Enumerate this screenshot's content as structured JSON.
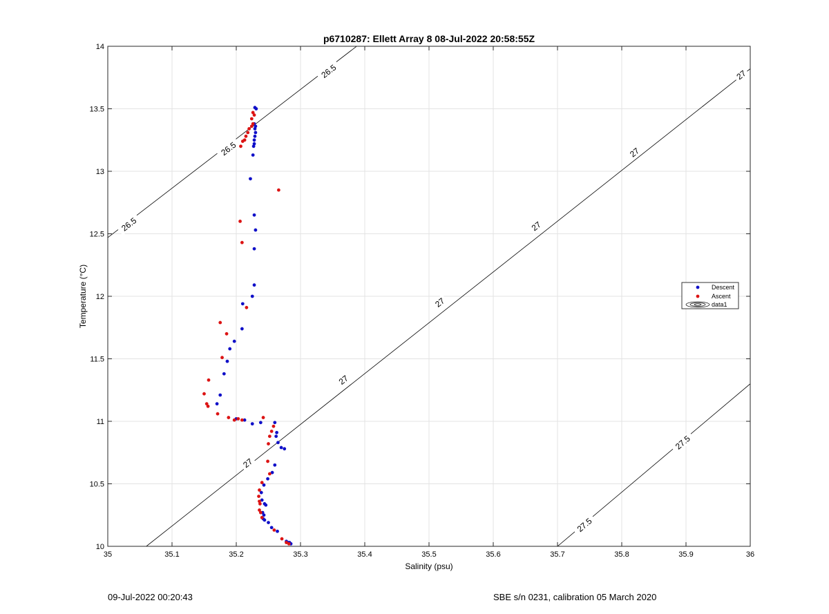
{
  "chart_data": {
    "type": "scatter",
    "title": "p6710287: Ellett Array 8 08-Jul-2022 20:58:55Z",
    "xlabel": "Salinity (psu)",
    "ylabel": "Temperature (°C)",
    "xlim": [
      35,
      36
    ],
    "ylim": [
      10,
      14
    ],
    "xticks": [
      "35",
      "35.1",
      "35.2",
      "35.3",
      "35.4",
      "35.5",
      "35.6",
      "35.7",
      "35.8",
      "35.9",
      "36"
    ],
    "yticks": [
      "10",
      "10.5",
      "11",
      "11.5",
      "12",
      "12.5",
      "13",
      "13.5",
      "14"
    ],
    "grid": true,
    "legend_position": "right",
    "legend": [
      "Descent",
      "Ascent",
      "data1"
    ],
    "colors": {
      "descent": "#1010c8",
      "ascent": "#dc1414",
      "contour": "#000000",
      "grid": "#e3e3e3"
    },
    "series": [
      {
        "name": "Descent",
        "points": [
          [
            35.229,
            13.51
          ],
          [
            35.231,
            13.5
          ],
          [
            35.228,
            13.38
          ],
          [
            35.23,
            13.36
          ],
          [
            35.229,
            13.34
          ],
          [
            35.23,
            13.31
          ],
          [
            35.229,
            13.28
          ],
          [
            35.228,
            13.25
          ],
          [
            35.228,
            13.22
          ],
          [
            35.227,
            13.2
          ],
          [
            35.226,
            13.13
          ],
          [
            35.222,
            12.94
          ],
          [
            35.228,
            12.65
          ],
          [
            35.23,
            12.53
          ],
          [
            35.228,
            12.38
          ],
          [
            35.228,
            12.09
          ],
          [
            35.225,
            12.0
          ],
          [
            35.21,
            11.94
          ],
          [
            35.209,
            11.74
          ],
          [
            35.197,
            11.64
          ],
          [
            35.19,
            11.58
          ],
          [
            35.186,
            11.48
          ],
          [
            35.181,
            11.38
          ],
          [
            35.175,
            11.21
          ],
          [
            35.17,
            11.14
          ],
          [
            35.2,
            11.02
          ],
          [
            35.213,
            11.01
          ],
          [
            35.225,
            10.98
          ],
          [
            35.238,
            10.99
          ],
          [
            35.26,
            10.99
          ],
          [
            35.263,
            10.91
          ],
          [
            35.262,
            10.88
          ],
          [
            35.265,
            10.83
          ],
          [
            35.27,
            10.79
          ],
          [
            35.275,
            10.78
          ],
          [
            35.26,
            10.65
          ],
          [
            35.256,
            10.59
          ],
          [
            35.249,
            10.54
          ],
          [
            35.243,
            10.49
          ],
          [
            35.239,
            10.43
          ],
          [
            35.24,
            10.37
          ],
          [
            35.244,
            10.34
          ],
          [
            35.246,
            10.33
          ],
          [
            35.241,
            10.27
          ],
          [
            35.243,
            10.25
          ],
          [
            35.242,
            10.22
          ],
          [
            35.244,
            10.21
          ],
          [
            35.25,
            10.19
          ],
          [
            35.255,
            10.15
          ],
          [
            35.264,
            10.12
          ],
          [
            35.278,
            10.04
          ],
          [
            35.281,
            10.03
          ],
          [
            35.283,
            10.03
          ],
          [
            35.285,
            10.02
          ]
        ]
      },
      {
        "name": "Ascent",
        "points": [
          [
            35.226,
            13.47
          ],
          [
            35.228,
            13.45
          ],
          [
            35.224,
            13.42
          ],
          [
            35.226,
            13.38
          ],
          [
            35.224,
            13.36
          ],
          [
            35.22,
            13.34
          ],
          [
            35.218,
            13.31
          ],
          [
            35.215,
            13.28
          ],
          [
            35.213,
            13.25
          ],
          [
            35.21,
            13.24
          ],
          [
            35.207,
            13.2
          ],
          [
            35.266,
            12.85
          ],
          [
            35.206,
            12.6
          ],
          [
            35.209,
            12.43
          ],
          [
            35.216,
            11.91
          ],
          [
            35.175,
            11.79
          ],
          [
            35.185,
            11.7
          ],
          [
            35.178,
            11.51
          ],
          [
            35.157,
            11.33
          ],
          [
            35.15,
            11.22
          ],
          [
            35.154,
            11.14
          ],
          [
            35.156,
            11.12
          ],
          [
            35.171,
            11.06
          ],
          [
            35.188,
            11.03
          ],
          [
            35.197,
            11.01
          ],
          [
            35.203,
            11.02
          ],
          [
            35.209,
            11.01
          ],
          [
            35.242,
            11.03
          ],
          [
            35.258,
            10.96
          ],
          [
            35.255,
            10.92
          ],
          [
            35.252,
            10.88
          ],
          [
            35.25,
            10.82
          ],
          [
            35.249,
            10.68
          ],
          [
            35.252,
            10.58
          ],
          [
            35.24,
            10.51
          ],
          [
            35.236,
            10.45
          ],
          [
            35.235,
            10.4
          ],
          [
            35.236,
            10.36
          ],
          [
            35.237,
            10.34
          ],
          [
            35.236,
            10.29
          ],
          [
            35.238,
            10.27
          ],
          [
            35.24,
            10.23
          ],
          [
            35.259,
            10.13
          ],
          [
            35.271,
            10.06
          ],
          [
            35.278,
            10.03
          ],
          [
            35.282,
            10.02
          ]
        ]
      }
    ],
    "contours": [
      {
        "sigma": 26.5,
        "label": "26.5",
        "points": [
          [
            34.995,
            12.45
          ],
          [
            35.4,
            14.05
          ]
        ]
      },
      {
        "sigma": 27,
        "label": "27",
        "points": [
          [
            35.06,
            10
          ],
          [
            36.0,
            13.82
          ]
        ]
      },
      {
        "sigma": 27.5,
        "label": "27.5",
        "points": [
          [
            35.7,
            10
          ],
          [
            36.0,
            11.3
          ]
        ]
      }
    ],
    "contour_labels": [
      {
        "text": "26.5",
        "x": 35.033,
        "y": 12.575
      },
      {
        "text": "26.5",
        "x": 35.188,
        "y": 13.18
      },
      {
        "text": "26.5",
        "x": 35.344,
        "y": 13.8
      },
      {
        "text": "27",
        "x": 35.218,
        "y": 10.665
      },
      {
        "text": "27",
        "x": 35.367,
        "y": 11.33
      },
      {
        "text": "27",
        "x": 35.517,
        "y": 11.95
      },
      {
        "text": "27",
        "x": 35.667,
        "y": 12.56
      },
      {
        "text": "27",
        "x": 35.82,
        "y": 13.15
      },
      {
        "text": "27",
        "x": 35.986,
        "y": 13.77
      },
      {
        "text": "27.5",
        "x": 35.742,
        "y": 10.17
      },
      {
        "text": "27.5",
        "x": 35.895,
        "y": 10.83
      }
    ]
  },
  "footer": {
    "left": "09-Jul-2022 00:20:43",
    "right": "SBE s/n 0231, calibration 05 March 2020"
  }
}
